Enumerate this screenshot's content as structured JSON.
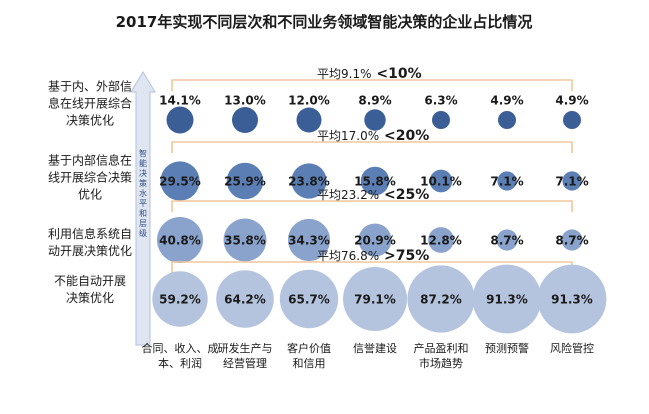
{
  "chart_data": {
    "type": "bubble-matrix",
    "title": "2017年实现不同层次和不同业务领域智能决策的企业占比情况",
    "y_axis_label": "智能决策水平和层级",
    "categories": [
      "合同、收入、成本、利润",
      "研发生产与经营管理",
      "客户价值和信用",
      "信誉建设",
      "产品盈利和市场趋势",
      "预测预警",
      "风险管控"
    ],
    "category_lines": [
      [
        "合同、收入、成",
        "本、利润"
      ],
      [
        "研发生产与",
        "经营管理"
      ],
      [
        "客户价值",
        "和信用"
      ],
      [
        "信誉建设"
      ],
      [
        "产品盈利和",
        "市场趋势"
      ],
      [
        "预测预警"
      ],
      [
        "风险管控"
      ]
    ],
    "series": [
      {
        "name": "基于内、外部信息在线开展综合决策优化",
        "name_lines": [
          "基于内、外部信",
          "息在线开展综合",
          "决策优化"
        ],
        "values": [
          14.1,
          13.0,
          12.0,
          8.9,
          6.3,
          4.9,
          4.9
        ],
        "labels": [
          "14.1%",
          "13.0%",
          "12.0%",
          "8.9%",
          "6.3%",
          "4.9%",
          "4.9%"
        ],
        "average_label": "平均9.1%",
        "threshold_label": "<10%",
        "color": "#3c5e97"
      },
      {
        "name": "基于内部信息在线开展综合决策优化",
        "name_lines": [
          "基于内部信息在",
          "线开展综合决策",
          "优化"
        ],
        "values": [
          29.5,
          25.9,
          23.8,
          15.8,
          10.1,
          7.1,
          7.1
        ],
        "labels": [
          "29.5%",
          "25.9%",
          "23.8%",
          "15.8%",
          "10.1%",
          "7.1%",
          "7.1%"
        ],
        "average_label": "平均17.0%",
        "threshold_label": "<20%",
        "color": "#5b7fb5"
      },
      {
        "name": "利用信息系统自动开展决策优化",
        "name_lines": [
          "利用信息系统自",
          "动开展决策优化"
        ],
        "values": [
          40.8,
          35.8,
          34.3,
          20.9,
          12.8,
          8.7,
          8.7
        ],
        "labels": [
          "40.8%",
          "35.8%",
          "34.3%",
          "20.9%",
          "12.8%",
          "8.7%",
          "8.7%"
        ],
        "average_label": "平均23.2%",
        "threshold_label": "<25%",
        "color": "#8aa3cc"
      },
      {
        "name": "不能自动开展决策优化",
        "name_lines": [
          "不能自动开展",
          "决策优化"
        ],
        "values": [
          59.2,
          64.2,
          65.7,
          79.1,
          87.2,
          91.3,
          91.3
        ],
        "labels": [
          "59.2%",
          "64.2%",
          "65.7%",
          "79.1%",
          "87.2%",
          "91.3%",
          "91.3%"
        ],
        "average_label": "平均76.8%",
        "threshold_label": ">75%",
        "color": "#b5c4de"
      }
    ],
    "colors": {
      "title": "#1a1a1a",
      "bracket": "#f2c79a",
      "threshold": "#1a1a1a",
      "arrow_fill": "#dfe6f1",
      "arrow_stroke": "#b3c2da",
      "axis_text": "#2f4f86"
    }
  }
}
